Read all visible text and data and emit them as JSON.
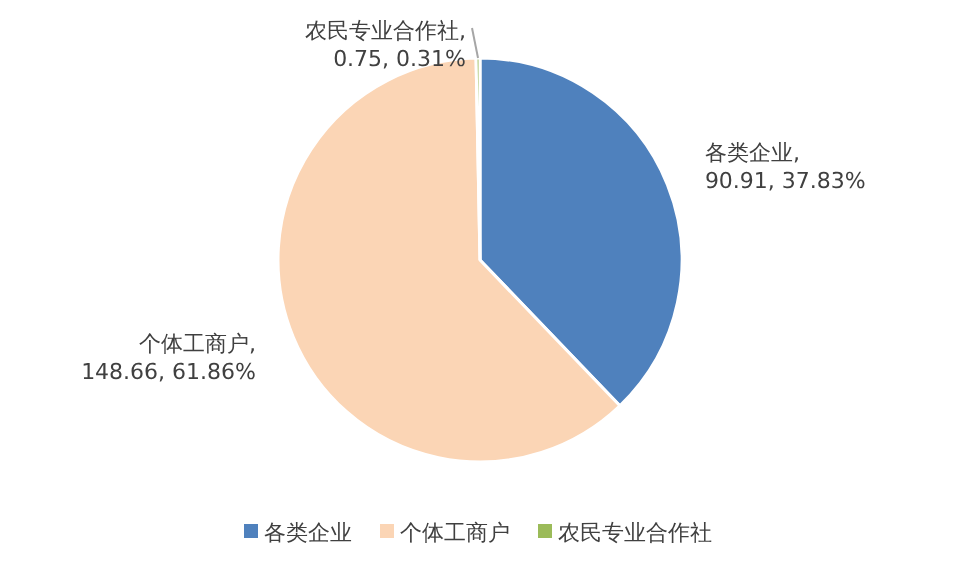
{
  "chart_data": {
    "type": "pie",
    "categories": [
      "各类企业",
      "个体工商户",
      "农民专业合作社"
    ],
    "values": [
      90.91,
      148.66,
      0.75
    ],
    "colors": [
      "#4f81bd",
      "#fbd5b5",
      "#9bbb59"
    ],
    "value_labels": [
      "各类企业, 90.91, 37.83%",
      "个体工商户, 148.66, 61.86%",
      "农民专业合作社, 0.75, 0.31%"
    ],
    "legend": "bottom"
  }
}
